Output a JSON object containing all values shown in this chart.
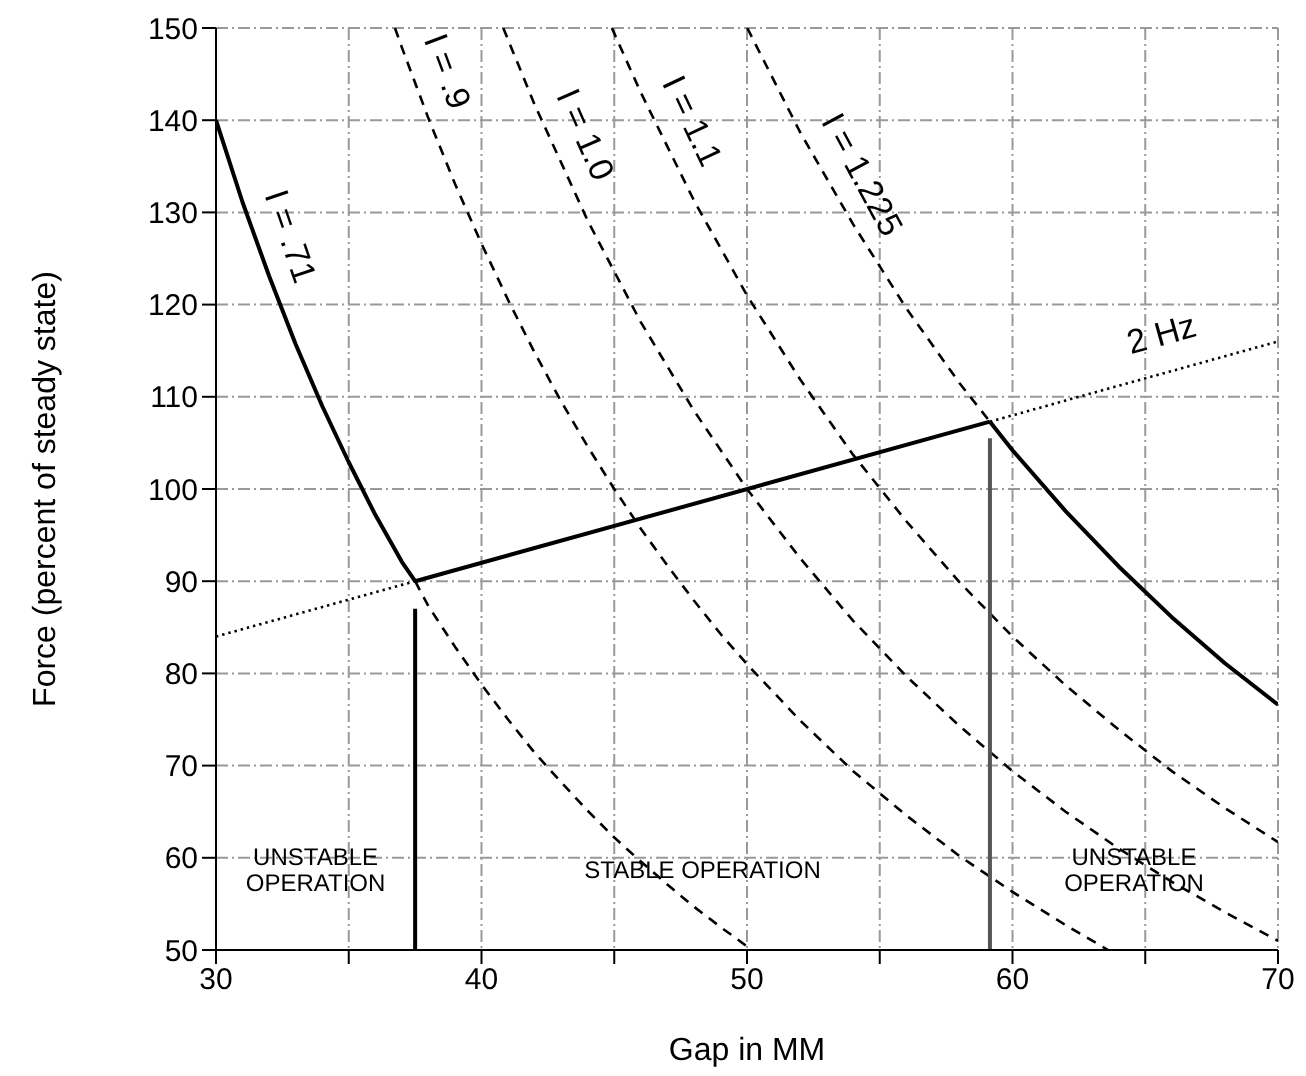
{
  "chart_data": {
    "type": "line",
    "xlabel": "Gap in MM",
    "ylabel": "Force (percent of steady state)",
    "xlim": [
      30,
      70
    ],
    "xticks": [
      30,
      {
        "value": 35,
        "label": null
      },
      40,
      {
        "value": 45,
        "label": null
      },
      50,
      {
        "value": 55,
        "label": null
      },
      60,
      {
        "value": 65,
        "label": null
      },
      70
    ],
    "ylim": [
      50,
      150
    ],
    "yticks": [
      50,
      60,
      70,
      80,
      90,
      100,
      110,
      120,
      130,
      140,
      150
    ],
    "grid": true,
    "marker": "none",
    "series": [
      {
        "name": "I = .71",
        "color": "#000000",
        "line_style": "solid",
        "x": [
          30,
          31,
          32,
          33,
          34,
          35,
          36,
          37,
          37.5
        ],
        "values": [
          140,
          131.1,
          123.1,
          115.7,
          109,
          102.9,
          97.2,
          92.1,
          90
        ]
      },
      {
        "color": "#000000",
        "line_style": "dashed",
        "x": [
          37.5,
          38,
          39,
          40,
          41,
          42,
          43,
          44,
          45,
          46,
          47,
          48,
          49,
          50,
          50.2
        ],
        "values": [
          90,
          87.3,
          82.9,
          78.8,
          75,
          71.4,
          68.2,
          65.1,
          62.2,
          59.6,
          57.1,
          54.7,
          52.5,
          50.4,
          50
        ]
      },
      {
        "name": "I = .9",
        "color": "#000000",
        "line_style": "dashed",
        "x": [
          36.74,
          37,
          38,
          39,
          40,
          41,
          42,
          43,
          44,
          45,
          46,
          47,
          48,
          49,
          50,
          52,
          54,
          56,
          58,
          60,
          62,
          63.6
        ],
        "values": [
          150,
          147.9,
          140.2,
          133.1,
          126.6,
          120.5,
          114.8,
          109.5,
          104.6,
          100,
          95.7,
          91.7,
          87.9,
          84.3,
          81,
          74.9,
          69.4,
          64.6,
          60.2,
          56.3,
          52.7,
          50
        ]
      },
      {
        "name": "I = 1.0",
        "color": "#000000",
        "line_style": "dashed",
        "x": [
          40.82,
          42,
          44,
          46,
          48,
          50,
          52,
          54,
          56,
          58,
          60,
          62,
          64,
          66,
          68,
          70
        ],
        "values": [
          150,
          141.7,
          129.1,
          118.1,
          108.5,
          100,
          92.5,
          85.7,
          79.7,
          74.3,
          69.4,
          65,
          61,
          57.4,
          54.1,
          51
        ]
      },
      {
        "name": "I = 1.1",
        "color": "#000000",
        "line_style": "dashed",
        "x": [
          44.91,
          46,
          48,
          50,
          52,
          54,
          56,
          58,
          60,
          62,
          64,
          66,
          68,
          70
        ],
        "values": [
          150,
          143,
          131.3,
          121,
          111.9,
          103.7,
          96.5,
          89.9,
          84,
          78.7,
          73.9,
          69.4,
          65.4,
          61.7
        ]
      },
      {
        "name": "I = 1.225",
        "color": "#000000",
        "line_style": "dashed",
        "x": [
          50.01,
          52,
          54,
          56,
          58,
          59.15
        ],
        "values": [
          150,
          138.7,
          128.7,
          119.6,
          111.5,
          107.3
        ]
      },
      {
        "color": "#000000",
        "line_style": "solid",
        "x": [
          59.15,
          60,
          62,
          64,
          66,
          68,
          70
        ],
        "values": [
          107.3,
          104.2,
          97.6,
          91.6,
          86.1,
          81.1,
          76.6
        ]
      },
      {
        "color": "#000000",
        "line_style": "dotted",
        "x": [
          30,
          37.5
        ],
        "values": [
          84,
          90
        ]
      },
      {
        "color": "#000000",
        "line_style": "solid",
        "x": [
          37.5,
          59.15
        ],
        "values": [
          90,
          107.3
        ]
      },
      {
        "name": "2 Hz",
        "color": "#000000",
        "line_style": "dotted",
        "x": [
          59.15,
          62,
          64,
          66,
          68,
          70
        ],
        "values": [
          107.3,
          109.6,
          111.2,
          112.8,
          114.4,
          116
        ]
      },
      {
        "color": "#000000",
        "line_style": "solid",
        "x": [
          37.5,
          37.5
        ],
        "values": [
          50,
          87
        ]
      },
      {
        "color": "#555555",
        "line_style": "solid",
        "x": [
          59.15,
          59.15
        ],
        "values": [
          50,
          105.5
        ]
      }
    ],
    "annotations": [
      "UNSTABLE\nOPERATION",
      "STABLE OPERATION",
      "UNSTABLE\nOPERATION"
    ]
  }
}
